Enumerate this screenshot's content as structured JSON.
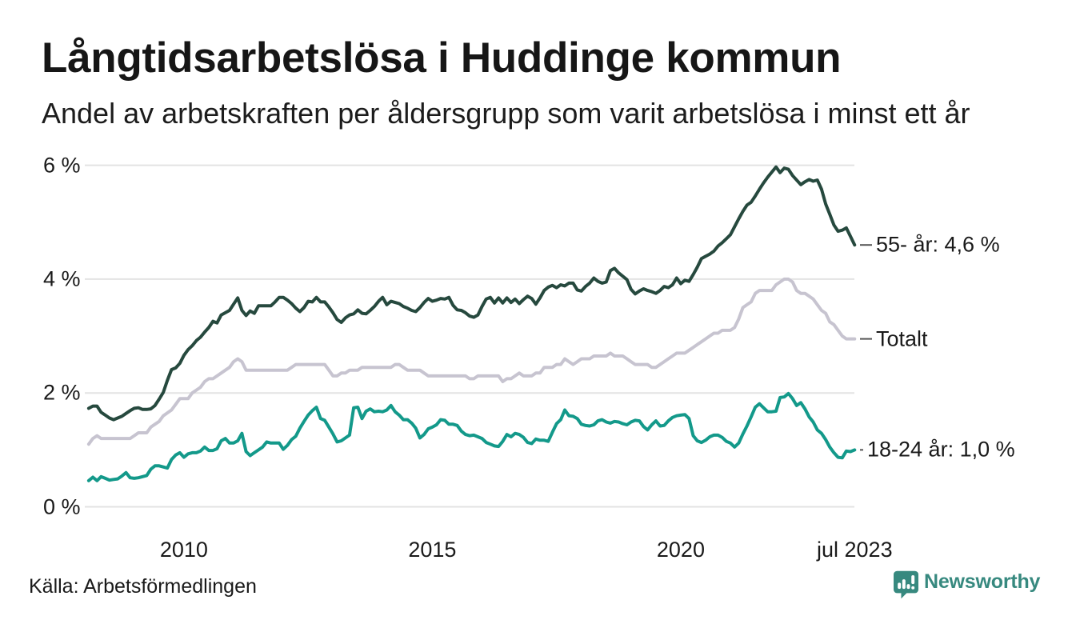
{
  "header": {
    "title": "Långtidsarbetslösa i Huddinge kommun",
    "subtitle": "Andel av arbetskraften per åldersgrupp som varit arbetslösa i minst ett år"
  },
  "footer": {
    "source": "Källa: Arbetsförmedlingen",
    "logo_text": "Newsworthy",
    "logo_color": "#37897f"
  },
  "chart_data": {
    "type": "line",
    "title": "Långtidsarbetslösa i Huddinge kommun",
    "subtitle": "Andel av arbetskraften per åldersgrupp som varit arbetslösa i minst ett år",
    "unit": "percent of labour force",
    "x": [
      "2008-02",
      "2008-03",
      "2008-04",
      "2008-05",
      "2008-06",
      "2008-07",
      "2008-08",
      "2008-09",
      "2008-10",
      "2008-11",
      "2008-12",
      "2009-01",
      "2009-02",
      "2009-03",
      "2009-04",
      "2009-05",
      "2009-06",
      "2009-07",
      "2009-08",
      "2009-09",
      "2009-10",
      "2009-11",
      "2009-12",
      "2010-01",
      "2010-02",
      "2010-03",
      "2010-04",
      "2010-05",
      "2010-06",
      "2010-07",
      "2010-08",
      "2010-09",
      "2010-10",
      "2010-11",
      "2010-12",
      "2011-01",
      "2011-02",
      "2011-03",
      "2011-04",
      "2011-05",
      "2011-06",
      "2011-07",
      "2011-08",
      "2011-09",
      "2011-10",
      "2011-11",
      "2011-12",
      "2012-01",
      "2012-02",
      "2012-03",
      "2012-04",
      "2012-05",
      "2012-06",
      "2012-07",
      "2012-08",
      "2012-09",
      "2012-10",
      "2012-11",
      "2012-12",
      "2013-01",
      "2013-02",
      "2013-03",
      "2013-04",
      "2013-05",
      "2013-06",
      "2013-07",
      "2013-08",
      "2013-09",
      "2013-10",
      "2013-11",
      "2013-12",
      "2014-01",
      "2014-02",
      "2014-03",
      "2014-04",
      "2014-05",
      "2014-06",
      "2014-07",
      "2014-08",
      "2014-09",
      "2014-10",
      "2014-11",
      "2014-12",
      "2015-01",
      "2015-02",
      "2015-03",
      "2015-04",
      "2015-05",
      "2015-06",
      "2015-07",
      "2015-08",
      "2015-09",
      "2015-10",
      "2015-11",
      "2015-12",
      "2016-01",
      "2016-02",
      "2016-03",
      "2016-04",
      "2016-05",
      "2016-06",
      "2016-07",
      "2016-08",
      "2016-09",
      "2016-10",
      "2016-11",
      "2016-12",
      "2017-01",
      "2017-02",
      "2017-03",
      "2017-04",
      "2017-05",
      "2017-06",
      "2017-07",
      "2017-08",
      "2017-09",
      "2017-10",
      "2017-11",
      "2017-12",
      "2018-01",
      "2018-02",
      "2018-03",
      "2018-04",
      "2018-05",
      "2018-06",
      "2018-07",
      "2018-08",
      "2018-09",
      "2018-10",
      "2018-11",
      "2018-12",
      "2019-01",
      "2019-02",
      "2019-03",
      "2019-04",
      "2019-05",
      "2019-06",
      "2019-07",
      "2019-08",
      "2019-09",
      "2019-10",
      "2019-11",
      "2019-12",
      "2020-01",
      "2020-02",
      "2020-03",
      "2020-04",
      "2020-05",
      "2020-06",
      "2020-07",
      "2020-08",
      "2020-09",
      "2020-10",
      "2020-11",
      "2020-12",
      "2021-01",
      "2021-02",
      "2021-03",
      "2021-04",
      "2021-05",
      "2021-06",
      "2021-07",
      "2021-08",
      "2021-09",
      "2021-10",
      "2021-11",
      "2021-12",
      "2022-01",
      "2022-02",
      "2022-03",
      "2022-04",
      "2022-05",
      "2022-06",
      "2022-07",
      "2022-08",
      "2022-09",
      "2022-10",
      "2022-11",
      "2022-12",
      "2023-01",
      "2023-02",
      "2023-03",
      "2023-04",
      "2023-05",
      "2023-06",
      "2023-07"
    ],
    "series": [
      {
        "name": "55- år",
        "color": "#26493e",
        "end_label": "55- år: 4,6 %",
        "values": [
          1.73,
          1.77,
          1.77,
          1.66,
          1.61,
          1.56,
          1.53,
          1.56,
          1.59,
          1.64,
          1.69,
          1.73,
          1.74,
          1.71,
          1.71,
          1.72,
          1.78,
          1.89,
          2.01,
          2.22,
          2.41,
          2.44,
          2.52,
          2.66,
          2.76,
          2.83,
          2.92,
          2.98,
          3.07,
          3.15,
          3.26,
          3.23,
          3.37,
          3.41,
          3.45,
          3.56,
          3.67,
          3.45,
          3.36,
          3.44,
          3.4,
          3.53,
          3.53,
          3.53,
          3.53,
          3.6,
          3.68,
          3.68,
          3.63,
          3.57,
          3.49,
          3.43,
          3.5,
          3.61,
          3.6,
          3.68,
          3.6,
          3.6,
          3.51,
          3.41,
          3.29,
          3.24,
          3.32,
          3.37,
          3.39,
          3.46,
          3.4,
          3.39,
          3.45,
          3.52,
          3.61,
          3.68,
          3.55,
          3.61,
          3.59,
          3.57,
          3.52,
          3.49,
          3.45,
          3.43,
          3.5,
          3.59,
          3.66,
          3.61,
          3.63,
          3.66,
          3.65,
          3.68,
          3.54,
          3.46,
          3.45,
          3.41,
          3.35,
          3.33,
          3.37,
          3.52,
          3.65,
          3.68,
          3.58,
          3.67,
          3.58,
          3.67,
          3.59,
          3.65,
          3.57,
          3.64,
          3.7,
          3.66,
          3.56,
          3.67,
          3.8,
          3.86,
          3.89,
          3.85,
          3.9,
          3.88,
          3.93,
          3.93,
          3.81,
          3.79,
          3.87,
          3.93,
          4.02,
          3.96,
          3.93,
          3.95,
          4.15,
          4.19,
          4.11,
          4.05,
          3.99,
          3.82,
          3.74,
          3.79,
          3.83,
          3.8,
          3.78,
          3.75,
          3.8,
          3.87,
          3.85,
          3.9,
          4.02,
          3.92,
          3.98,
          3.96,
          4.08,
          4.21,
          4.36,
          4.4,
          4.44,
          4.49,
          4.58,
          4.64,
          4.71,
          4.78,
          4.92,
          5.06,
          5.19,
          5.3,
          5.35,
          5.46,
          5.58,
          5.69,
          5.79,
          5.88,
          5.97,
          5.87,
          5.95,
          5.93,
          5.82,
          5.74,
          5.66,
          5.71,
          5.75,
          5.72,
          5.74,
          5.58,
          5.32,
          5.14,
          4.95,
          4.84,
          4.86,
          4.9,
          4.75,
          4.6
        ]
      },
      {
        "name": "Totalt",
        "color": "#c7c4d0",
        "end_label": "Totalt",
        "values": [
          1.1,
          1.2,
          1.25,
          1.2,
          1.2,
          1.2,
          1.2,
          1.2,
          1.2,
          1.2,
          1.2,
          1.25,
          1.3,
          1.3,
          1.3,
          1.4,
          1.45,
          1.5,
          1.6,
          1.65,
          1.7,
          1.8,
          1.9,
          1.9,
          1.9,
          2.0,
          2.05,
          2.1,
          2.2,
          2.25,
          2.25,
          2.3,
          2.35,
          2.4,
          2.45,
          2.55,
          2.6,
          2.55,
          2.4,
          2.4,
          2.4,
          2.4,
          2.4,
          2.4,
          2.4,
          2.4,
          2.4,
          2.4,
          2.4,
          2.45,
          2.5,
          2.5,
          2.5,
          2.5,
          2.5,
          2.5,
          2.5,
          2.5,
          2.4,
          2.3,
          2.3,
          2.35,
          2.35,
          2.4,
          2.4,
          2.4,
          2.45,
          2.45,
          2.45,
          2.45,
          2.45,
          2.45,
          2.45,
          2.45,
          2.5,
          2.5,
          2.45,
          2.4,
          2.4,
          2.4,
          2.4,
          2.35,
          2.3,
          2.3,
          2.3,
          2.3,
          2.3,
          2.3,
          2.3,
          2.3,
          2.3,
          2.3,
          2.25,
          2.25,
          2.3,
          2.3,
          2.3,
          2.3,
          2.3,
          2.3,
          2.2,
          2.25,
          2.25,
          2.3,
          2.35,
          2.3,
          2.3,
          2.3,
          2.35,
          2.35,
          2.45,
          2.45,
          2.45,
          2.5,
          2.5,
          2.6,
          2.55,
          2.5,
          2.55,
          2.6,
          2.6,
          2.6,
          2.65,
          2.65,
          2.65,
          2.65,
          2.7,
          2.65,
          2.65,
          2.65,
          2.6,
          2.55,
          2.5,
          2.5,
          2.5,
          2.5,
          2.45,
          2.45,
          2.5,
          2.55,
          2.6,
          2.65,
          2.7,
          2.7,
          2.7,
          2.75,
          2.8,
          2.85,
          2.9,
          2.95,
          3.0,
          3.05,
          3.05,
          3.1,
          3.1,
          3.1,
          3.15,
          3.3,
          3.5,
          3.55,
          3.6,
          3.75,
          3.8,
          3.8,
          3.8,
          3.8,
          3.9,
          3.95,
          4.0,
          4.0,
          3.95,
          3.8,
          3.75,
          3.75,
          3.7,
          3.65,
          3.55,
          3.45,
          3.4,
          3.25,
          3.2,
          3.1,
          3.0,
          2.95,
          2.95,
          2.95
        ]
      },
      {
        "name": "18-24 år",
        "color": "#13998a",
        "end_label": "18-24 år: 1,0 %",
        "values": [
          0.46,
          0.52,
          0.46,
          0.53,
          0.5,
          0.47,
          0.48,
          0.49,
          0.54,
          0.6,
          0.51,
          0.5,
          0.51,
          0.53,
          0.55,
          0.66,
          0.72,
          0.72,
          0.7,
          0.68,
          0.83,
          0.91,
          0.95,
          0.87,
          0.93,
          0.95,
          0.95,
          0.98,
          1.05,
          0.99,
          0.99,
          1.02,
          1.16,
          1.2,
          1.12,
          1.12,
          1.16,
          1.29,
          0.97,
          0.9,
          0.95,
          1.0,
          1.05,
          1.14,
          1.12,
          1.12,
          1.12,
          1.01,
          1.08,
          1.18,
          1.24,
          1.38,
          1.5,
          1.61,
          1.69,
          1.75,
          1.55,
          1.52,
          1.4,
          1.28,
          1.14,
          1.16,
          1.21,
          1.26,
          1.74,
          1.75,
          1.55,
          1.68,
          1.72,
          1.67,
          1.68,
          1.67,
          1.7,
          1.78,
          1.67,
          1.61,
          1.53,
          1.53,
          1.47,
          1.38,
          1.21,
          1.27,
          1.37,
          1.4,
          1.44,
          1.53,
          1.52,
          1.45,
          1.45,
          1.43,
          1.33,
          1.27,
          1.25,
          1.26,
          1.23,
          1.2,
          1.13,
          1.1,
          1.07,
          1.06,
          1.15,
          1.27,
          1.23,
          1.29,
          1.27,
          1.22,
          1.13,
          1.11,
          1.19,
          1.17,
          1.17,
          1.15,
          1.31,
          1.46,
          1.53,
          1.7,
          1.6,
          1.59,
          1.55,
          1.45,
          1.43,
          1.42,
          1.44,
          1.51,
          1.53,
          1.49,
          1.47,
          1.5,
          1.49,
          1.46,
          1.44,
          1.49,
          1.52,
          1.51,
          1.41,
          1.35,
          1.44,
          1.51,
          1.42,
          1.43,
          1.51,
          1.57,
          1.6,
          1.61,
          1.62,
          1.55,
          1.25,
          1.16,
          1.13,
          1.17,
          1.23,
          1.26,
          1.26,
          1.22,
          1.15,
          1.12,
          1.05,
          1.12,
          1.28,
          1.42,
          1.58,
          1.75,
          1.81,
          1.74,
          1.67,
          1.67,
          1.68,
          1.92,
          1.93,
          1.99,
          1.9,
          1.78,
          1.83,
          1.72,
          1.58,
          1.49,
          1.35,
          1.29,
          1.18,
          1.05,
          0.95,
          0.87,
          0.86,
          0.98,
          0.97,
          1.0
        ]
      }
    ],
    "yticks": [
      {
        "value": 0,
        "label": "0 %"
      },
      {
        "value": 2,
        "label": "2 %"
      },
      {
        "value": 4,
        "label": "4 %"
      },
      {
        "value": 6,
        "label": "6 %"
      }
    ],
    "xticks": [
      {
        "x": "2010-01",
        "label": "2010"
      },
      {
        "x": "2015-01",
        "label": "2015"
      },
      {
        "x": "2020-01",
        "label": "2020"
      },
      {
        "x": "2023-07",
        "label": "jul 2023"
      }
    ],
    "ylim": [
      0,
      6.3
    ],
    "grid": "horizontal",
    "legend_position": "right-end-labels",
    "grid_color": "#e3e3e3",
    "text_color": "#1a1a1a"
  }
}
